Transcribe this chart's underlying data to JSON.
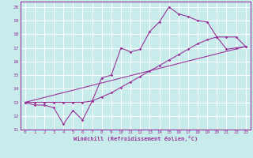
{
  "xlabel": "Windchill (Refroidissement éolien,°C)",
  "xlim": [
    -0.5,
    23.5
  ],
  "ylim": [
    11,
    20.4
  ],
  "yticks": [
    11,
    12,
    13,
    14,
    15,
    16,
    17,
    18,
    19,
    20
  ],
  "xticks": [
    0,
    1,
    2,
    3,
    4,
    5,
    6,
    7,
    8,
    9,
    10,
    11,
    12,
    13,
    14,
    15,
    16,
    17,
    18,
    19,
    20,
    21,
    22,
    23
  ],
  "background_color": "#c8ecec",
  "grid_color": "#ffffff",
  "line_color": "#993399",
  "line1_x": [
    0,
    1,
    2,
    3,
    4,
    5,
    6,
    7,
    8,
    9,
    10,
    11,
    12,
    13,
    14,
    15,
    16,
    17,
    18,
    19,
    20,
    21,
    22,
    23
  ],
  "line1_y": [
    13,
    12.8,
    12.8,
    12.6,
    11.4,
    12.4,
    11.7,
    13.1,
    14.8,
    15.0,
    17.0,
    16.7,
    16.9,
    18.2,
    18.9,
    20.0,
    19.5,
    19.3,
    19.0,
    18.9,
    17.8,
    16.9,
    17.0,
    17.1
  ],
  "line2_x": [
    0,
    1,
    2,
    3,
    4,
    5,
    6,
    7,
    8,
    9,
    10,
    11,
    12,
    13,
    14,
    15,
    16,
    17,
    18,
    19,
    20,
    21,
    22,
    23
  ],
  "line2_y": [
    13,
    13,
    13,
    13,
    13,
    13,
    13,
    13.1,
    13.4,
    13.7,
    14.1,
    14.5,
    14.9,
    15.3,
    15.7,
    16.1,
    16.5,
    16.9,
    17.3,
    17.6,
    17.8,
    17.8,
    17.8,
    17.1
  ],
  "line3_x": [
    0,
    23
  ],
  "line3_y": [
    13,
    17.1
  ]
}
